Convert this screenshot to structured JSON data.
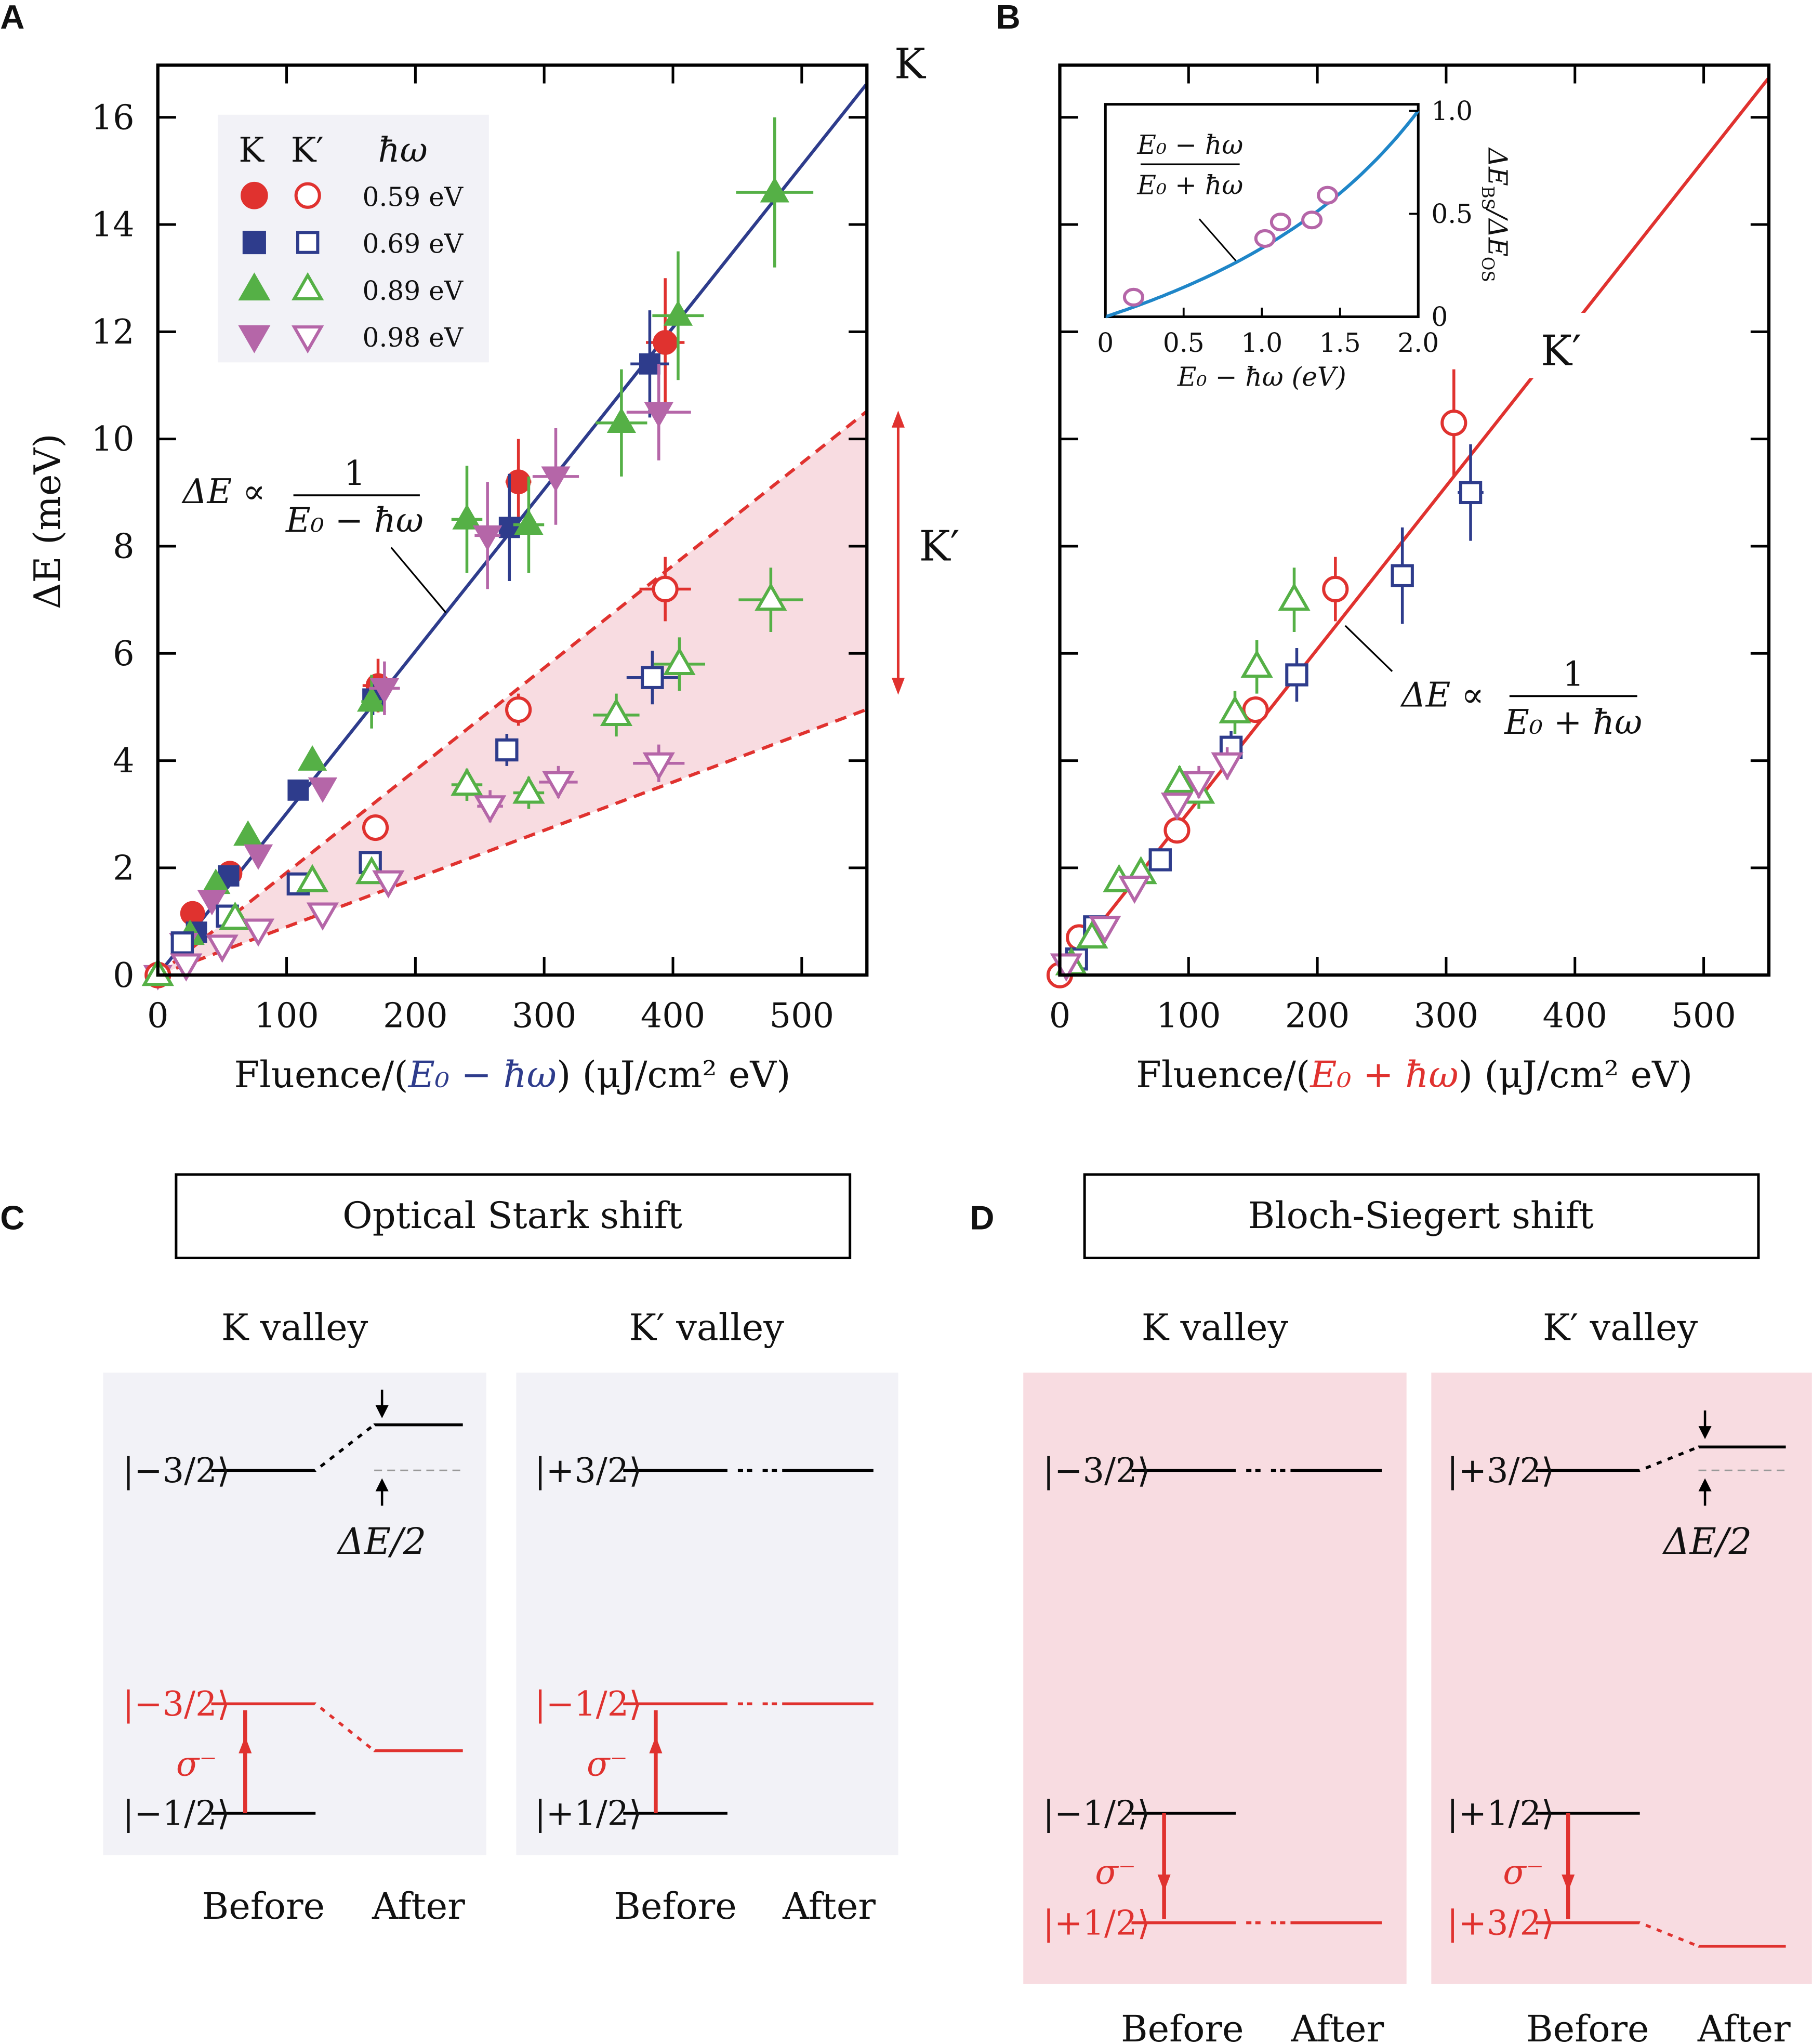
{
  "colors": {
    "red": "#e0322f",
    "blue": "#2e3c8c",
    "green": "#55b046",
    "magenta": "#b566a8",
    "pink": "#f8dce1",
    "gray": "#f2f2f7",
    "inset_curve": "#1f86c8"
  },
  "panels": {
    "A": "A",
    "B": "B",
    "C": "C",
    "D": "D"
  },
  "panelA": {
    "valley_label_K": "K",
    "valley_label_Kp": "K′",
    "ylabel": "ΔE (meV)",
    "xlabel_parts": [
      "Fluence/(",
      "E₀ − ħω",
      ") (μJ/cm² eV)"
    ],
    "formula_lhs": "ΔE ∝",
    "formula_num": "1",
    "formula_den": "E₀ − ħω",
    "legend": {
      "col_K": "K",
      "col_Kp": "K′",
      "col_hw": "ħω",
      "rows": [
        "0.59 eV",
        "0.69 eV",
        "0.89 eV",
        "0.98 eV"
      ]
    }
  },
  "panelB": {
    "valley_label": "K′",
    "xlabel_parts": [
      "Fluence/(",
      "E₀ + ħω",
      ") (μJ/cm² eV)"
    ],
    "formula_lhs": "ΔE ∝",
    "formula_num": "1",
    "formula_den": "E₀ + ħω",
    "inset": {
      "xlabel": "E₀ − ħω (eV)",
      "ylabel_parts": [
        "ΔE",
        "BS",
        "/ΔE",
        "OS"
      ],
      "formula_num": "E₀ − ħω",
      "formula_den": "E₀ + ħω"
    }
  },
  "panelC": {
    "title": "Optical Stark shift",
    "k_valley": "K valley",
    "kp_valley": "K′ valley",
    "k_states": [
      "|−3/2⟩",
      "|−3/2⟩",
      "|−1/2⟩"
    ],
    "kp_states": [
      "|+3/2⟩",
      "|−1/2⟩",
      "|+1/2⟩"
    ],
    "sigma": "σ⁻",
    "shift": "ΔE/2",
    "before": "Before",
    "after": "After"
  },
  "panelD": {
    "title": "Bloch-Siegert shift",
    "k_valley": "K valley",
    "kp_valley": "K′ valley",
    "k_states": [
      "|−3/2⟩",
      "|−1/2⟩",
      "|+1/2⟩"
    ],
    "kp_states": [
      "|+3/2⟩",
      "|+1/2⟩",
      "|+3/2⟩"
    ],
    "sigma": "σ⁻",
    "shift": "ΔE/2",
    "before": "Before",
    "after": "After"
  },
  "chart_data": [
    {
      "panel": "A",
      "type": "scatter",
      "xlabel": "Fluence/(E₀ − ħω) (μJ/cm² eV)",
      "ylabel": "ΔE (meV)",
      "xlim": [
        0,
        550
      ],
      "ylim": [
        0,
        17
      ],
      "xticks": [
        0,
        100,
        200,
        300,
        400,
        500
      ],
      "yticks": [
        0,
        2,
        4,
        6,
        8,
        10,
        12,
        14,
        16
      ],
      "legend": "top-left",
      "point_format": "[x, y, xerr, yerr]",
      "series": [
        {
          "name": "0.59 eV",
          "valley": "K",
          "marker": "circle",
          "filled": true,
          "color": "red",
          "points": [
            [
              27,
              1.15,
              0,
              0
            ],
            [
              56,
              1.9,
              0,
              0
            ],
            [
              171,
              5.4,
              12,
              0.5
            ],
            [
              280,
              9.2,
              10,
              0.8
            ],
            [
              394,
              11.8,
              15,
              1.2
            ]
          ]
        },
        {
          "name": "0.69 eV",
          "valley": "K",
          "marker": "square",
          "filled": true,
          "color": "blue",
          "points": [
            [
              30,
              0.8,
              0,
              0
            ],
            [
              55,
              1.85,
              0,
              0
            ],
            [
              109,
              3.45,
              0,
              0
            ],
            [
              167,
              5.15,
              0,
              0.3
            ],
            [
              273,
              8.35,
              8,
              1.0
            ],
            [
              382,
              11.4,
              15,
              1.0
            ]
          ]
        },
        {
          "name": "0.89 eV",
          "valley": "K",
          "marker": "triangle-up",
          "filled": true,
          "color": "green",
          "points": [
            [
              0,
              0,
              0,
              0
            ],
            [
              25,
              0.75,
              0,
              0
            ],
            [
              45,
              1.7,
              0,
              0
            ],
            [
              70,
              2.6,
              0,
              0
            ],
            [
              120,
              4.0,
              0,
              0
            ],
            [
              166,
              5.1,
              8,
              0.5
            ],
            [
              240,
              8.5,
              12,
              1.0
            ],
            [
              288,
              8.4,
              12,
              0.9
            ],
            [
              360,
              10.3,
              20,
              1.0
            ],
            [
              404,
              12.3,
              20,
              1.2
            ],
            [
              479,
              14.6,
              30,
              1.4
            ]
          ]
        },
        {
          "name": "0.98 eV",
          "valley": "K",
          "marker": "triangle-down",
          "filled": true,
          "color": "magenta",
          "points": [
            [
              0,
              0,
              0,
              0
            ],
            [
              20,
              0.6,
              0,
              0
            ],
            [
              42,
              1.4,
              0,
              0
            ],
            [
              78,
              2.25,
              0,
              0
            ],
            [
              128,
              3.5,
              0,
              0
            ],
            [
              176,
              5.35,
              12,
              0.5
            ],
            [
              256,
              8.2,
              10,
              1.0
            ],
            [
              309,
              9.3,
              18,
              0.9
            ],
            [
              389,
              10.5,
              25,
              0.9
            ]
          ]
        },
        {
          "name": "0.59 eV",
          "valley": "K′",
          "marker": "circle",
          "filled": false,
          "color": "red",
          "points": [
            [
              0,
              0,
              0,
              0
            ],
            [
              169,
              2.75,
              0,
              0
            ],
            [
              280,
              4.95,
              0,
              0.3
            ],
            [
              394,
              7.2,
              20,
              0.6
            ]
          ]
        },
        {
          "name": "0.69 eV",
          "valley": "K′",
          "marker": "square",
          "filled": false,
          "color": "blue",
          "points": [
            [
              19,
              0.6,
              0,
              0
            ],
            [
              54,
              1.1,
              0,
              0
            ],
            [
              109,
              1.7,
              0,
              0
            ],
            [
              165,
              2.1,
              0,
              0
            ],
            [
              271,
              4.2,
              8,
              0.3
            ],
            [
              384,
              5.55,
              20,
              0.5
            ]
          ]
        },
        {
          "name": "0.89 eV",
          "valley": "K′",
          "marker": "triangle-up",
          "filled": false,
          "color": "green",
          "points": [
            [
              0,
              0,
              0,
              0
            ],
            [
              60,
              1.05,
              0,
              0
            ],
            [
              120,
              1.75,
              0,
              0
            ],
            [
              166,
              1.9,
              0,
              0
            ],
            [
              240,
              3.55,
              12,
              0.3
            ],
            [
              288,
              3.4,
              12,
              0.3
            ],
            [
              356,
              4.85,
              18,
              0.4
            ],
            [
              405,
              5.8,
              20,
              0.5
            ],
            [
              476,
              7.0,
              25,
              0.6
            ]
          ]
        },
        {
          "name": "0.98 eV",
          "valley": "K′",
          "marker": "triangle-down",
          "filled": false,
          "color": "magenta",
          "points": [
            [
              22,
              0.2,
              0,
              0
            ],
            [
              50,
              0.55,
              0,
              0
            ],
            [
              78,
              0.85,
              0,
              0
            ],
            [
              128,
              1.15,
              0,
              0
            ],
            [
              179,
              1.75,
              0,
              0
            ],
            [
              258,
              3.15,
              10,
              0.3
            ],
            [
              311,
              3.6,
              15,
              0.3
            ],
            [
              389,
              3.95,
              20,
              0.35
            ]
          ]
        }
      ],
      "fits": [
        {
          "label": "ΔE ∝ 1/(E₀ − ħω)",
          "style": "solid",
          "color": "blue",
          "slope": 0.0302
        },
        {
          "style": "dashed",
          "color": "red",
          "slope": 0.0191
        },
        {
          "style": "dashed",
          "color": "red",
          "slope": 0.009
        }
      ]
    },
    {
      "panel": "B",
      "type": "scatter",
      "xlabel": "Fluence/(E₀ + ħω) (μJ/cm² eV)",
      "xlim": [
        0,
        550
      ],
      "ylim": [
        0,
        17
      ],
      "xticks": [
        0,
        100,
        200,
        300,
        400,
        500
      ],
      "point_format": "[x, y, xerr, yerr]",
      "series": [
        {
          "name": "0.59 eV",
          "valley": "K′",
          "marker": "circle",
          "filled": false,
          "color": "red",
          "points": [
            [
              0,
              0,
              0,
              0
            ],
            [
              15,
              0.7,
              0,
              0
            ],
            [
              91,
              2.7,
              0,
              0
            ],
            [
              152,
              4.95,
              0,
              0
            ],
            [
              214,
              7.2,
              0,
              0.6
            ],
            [
              306,
              10.3,
              5,
              1.0
            ]
          ]
        },
        {
          "name": "0.69 eV",
          "valley": "K′",
          "marker": "square",
          "filled": false,
          "color": "blue",
          "points": [
            [
              13,
              0.3,
              0,
              0
            ],
            [
              27,
              0.9,
              0,
              0
            ],
            [
              78,
              2.15,
              0,
              0
            ],
            [
              133,
              4.25,
              0,
              0.3
            ],
            [
              184,
              5.6,
              0,
              0.5
            ],
            [
              266,
              7.45,
              6,
              0.9
            ],
            [
              319,
              9.0,
              10,
              0.9
            ]
          ]
        },
        {
          "name": "0.89 eV",
          "valley": "K′",
          "marker": "triangle-up",
          "filled": false,
          "color": "green",
          "points": [
            [
              9,
              0.2,
              0,
              0
            ],
            [
              25,
              0.7,
              0,
              0
            ],
            [
              46,
              1.75,
              0,
              0
            ],
            [
              63,
              1.9,
              0,
              0
            ],
            [
              93,
              3.6,
              0,
              0.3
            ],
            [
              108,
              3.4,
              0,
              0.3
            ],
            [
              136,
              4.9,
              0,
              0.4
            ],
            [
              153,
              5.75,
              0,
              0.5
            ],
            [
              182,
              7.0,
              0,
              0.6
            ]
          ]
        },
        {
          "name": "0.98 eV",
          "valley": "K′",
          "marker": "triangle-down",
          "filled": false,
          "color": "magenta",
          "points": [
            [
              5,
              0.2,
              0,
              0
            ],
            [
              35,
              0.9,
              0,
              0
            ],
            [
              58,
              1.65,
              0,
              0
            ],
            [
              91,
              3.2,
              0,
              0
            ],
            [
              108,
              3.6,
              0,
              0.3
            ],
            [
              130,
              3.95,
              0,
              0.3
            ]
          ]
        }
      ],
      "fits": [
        {
          "label": "ΔE ∝ 1/(E₀ + ħω)",
          "style": "solid",
          "color": "red",
          "slope": 0.0304
        }
      ]
    },
    {
      "panel": "B-inset",
      "type": "scatter",
      "xlabel": "E₀ − ħω (eV)",
      "ylabel": "ΔE_BS/ΔE_OS",
      "xlim": [
        0,
        2.0
      ],
      "ylim": [
        0,
        1.03
      ],
      "xticks": [
        "0",
        "0.5",
        "1.0",
        "1.5",
        "2.0"
      ],
      "yticks": [
        "0",
        "0.5",
        "1.0"
      ],
      "points": [
        [
          0.18,
          0.095
        ],
        [
          1.02,
          0.38
        ],
        [
          1.12,
          0.46
        ],
        [
          1.32,
          0.47
        ],
        [
          1.42,
          0.59
        ]
      ],
      "curve": {
        "label": "(E₀ − ħω)/(E₀ + ħω)",
        "E0": 2.0
      }
    }
  ]
}
